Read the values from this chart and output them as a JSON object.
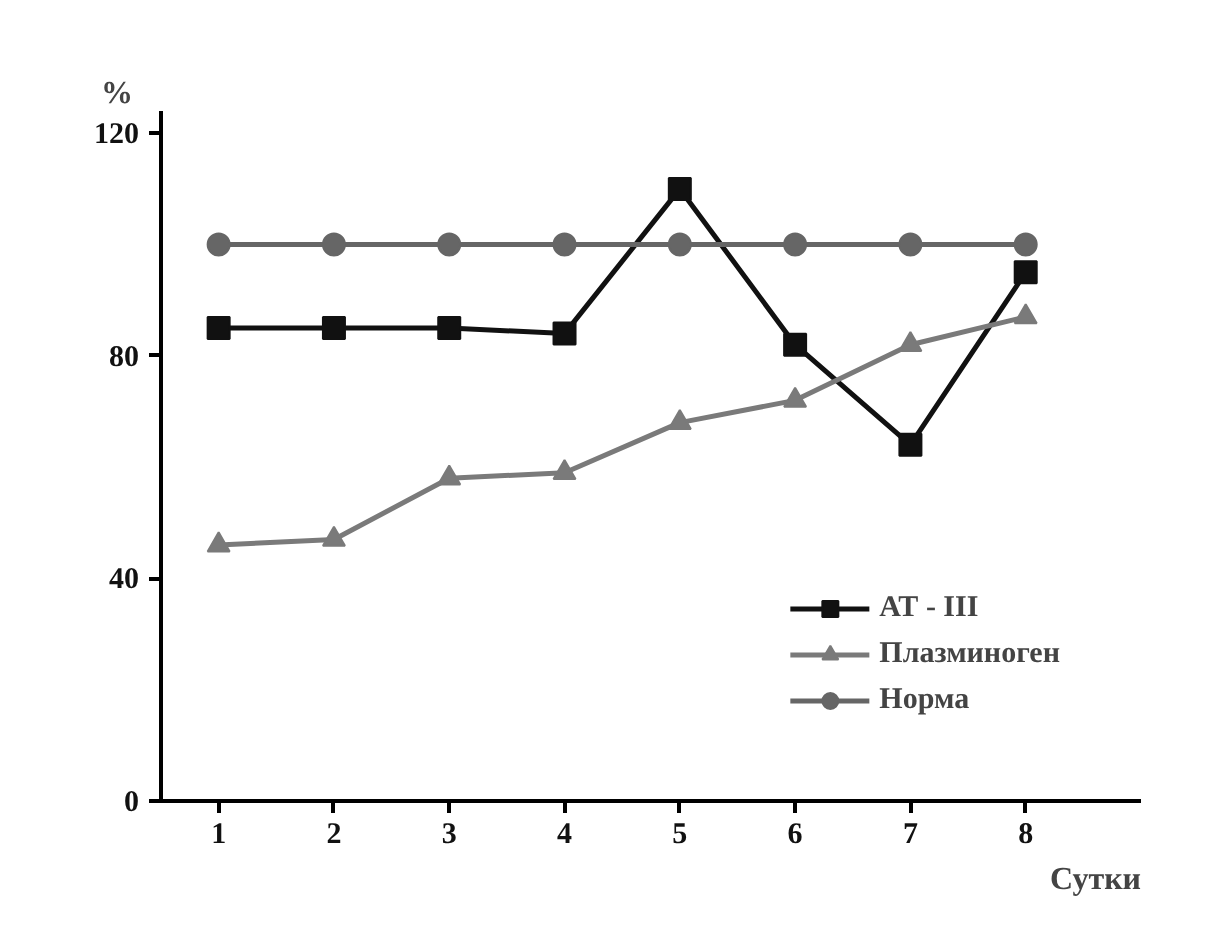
{
  "chart_data": {
    "type": "line",
    "ylabel": "%",
    "xlabel": "Сутки",
    "x": [
      1,
      2,
      3,
      4,
      5,
      6,
      7,
      8
    ],
    "xlim": [
      0.5,
      9
    ],
    "xticks": [
      1,
      2,
      3,
      4,
      5,
      6,
      7,
      8
    ],
    "ylim": [
      0,
      124
    ],
    "yticks": [
      0,
      40,
      80,
      120
    ],
    "grid": false,
    "legend": "bottom right",
    "series": [
      {
        "name": "АТ - III",
        "color": "#111111",
        "marker": "square",
        "values": [
          85,
          85,
          85,
          84,
          110,
          82,
          64,
          95
        ]
      },
      {
        "name": "Плазминоген",
        "color": "#7a7a7a",
        "marker": "triangle",
        "values": [
          46,
          47,
          58,
          59,
          68,
          72,
          82,
          87
        ]
      },
      {
        "name": "Норма",
        "color": "#666666",
        "marker": "circle",
        "values": [
          100,
          100,
          100,
          100,
          100,
          100,
          100,
          100
        ]
      }
    ]
  }
}
